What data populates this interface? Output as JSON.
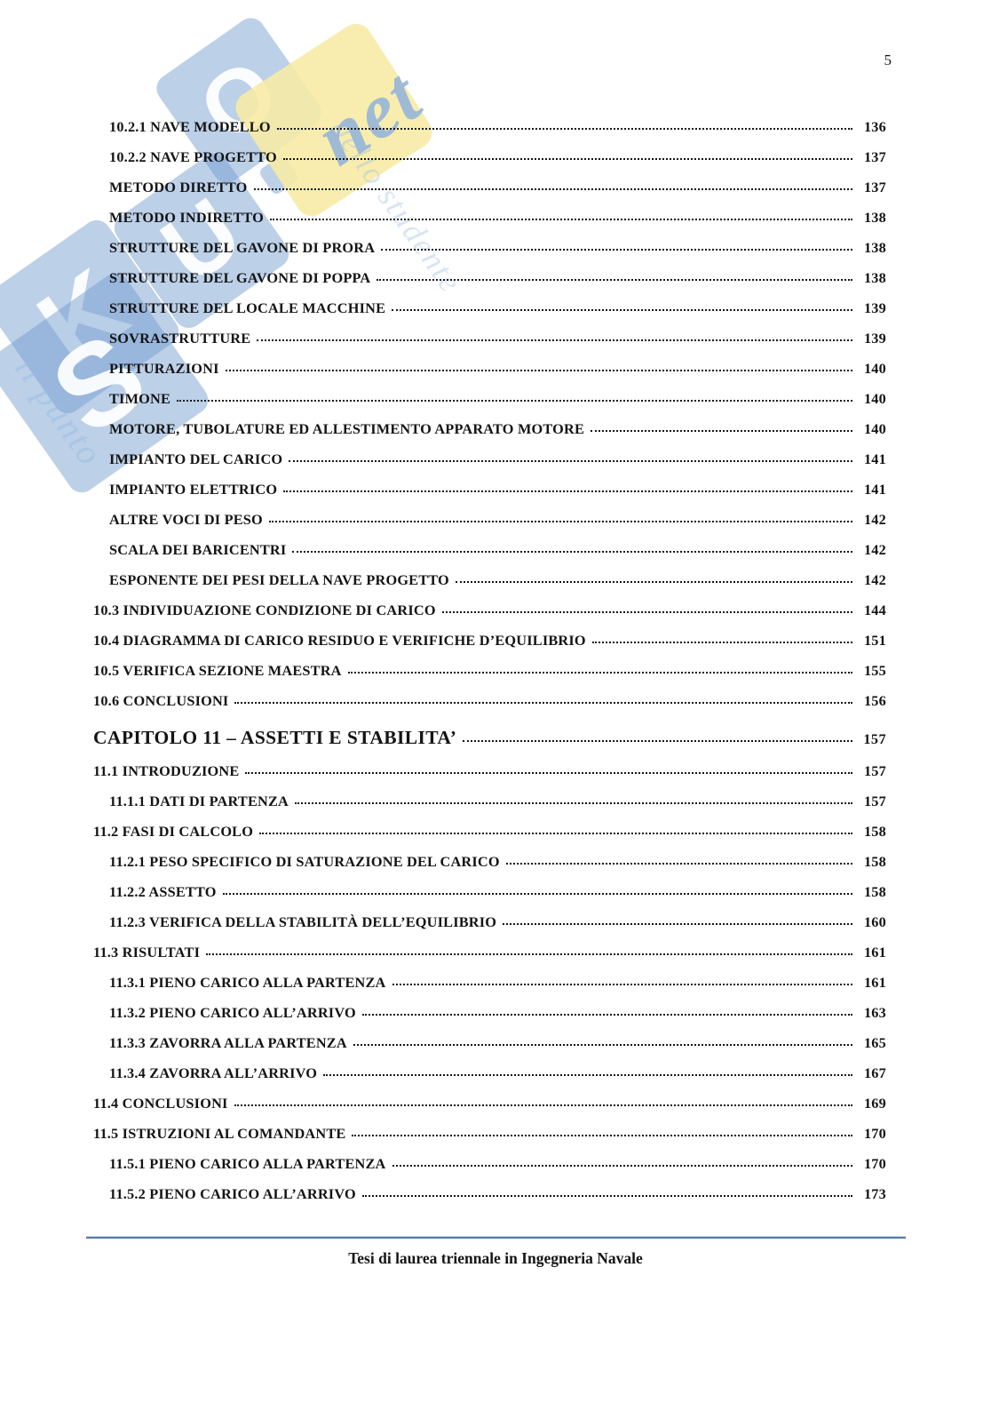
{
  "page": {
    "number": "5"
  },
  "toc": {
    "entries": [
      {
        "label": "10.2.1 NAVE MODELLO",
        "page": "136",
        "level": "subsection"
      },
      {
        "label": "10.2.2 NAVE PROGETTO",
        "page": "137",
        "level": "subsection"
      },
      {
        "label": "METODO DIRETTO",
        "page": "137",
        "level": "subsection"
      },
      {
        "label": "METODO INDIRETTO",
        "page": "138",
        "level": "subsection"
      },
      {
        "label": "STRUTTURE DEL GAVONE DI PRORA",
        "page": "138",
        "level": "subsection"
      },
      {
        "label": "STRUTTURE DEL GAVONE DI POPPA",
        "page": "138",
        "level": "subsection"
      },
      {
        "label": "STRUTTURE DEL LOCALE MACCHINE",
        "page": "139",
        "level": "subsection"
      },
      {
        "label": "SOVRASTRUTTURE",
        "page": "139",
        "level": "subsection"
      },
      {
        "label": "PITTURAZIONI",
        "page": "140",
        "level": "subsection"
      },
      {
        "label": "TIMONE",
        "page": "140",
        "level": "subsection"
      },
      {
        "label": "MOTORE, TUBOLATURE ED ALLESTIMENTO APPARATO MOTORE",
        "page": "140",
        "level": "subsection"
      },
      {
        "label": "IMPIANTO DEL CARICO",
        "page": "141",
        "level": "subsection"
      },
      {
        "label": "IMPIANTO ELETTRICO",
        "page": "141",
        "level": "subsection"
      },
      {
        "label": "ALTRE VOCI DI PESO",
        "page": "142",
        "level": "subsection"
      },
      {
        "label": "SCALA DEI BARICENTRI",
        "page": "142",
        "level": "subsection"
      },
      {
        "label": "ESPONENTE DEI PESI DELLA NAVE PROGETTO",
        "page": "142",
        "level": "subsection"
      },
      {
        "label": "10.3 INDIVIDUAZIONE CONDIZIONE DI CARICO",
        "page": "144",
        "level": "section"
      },
      {
        "label": "10.4 DIAGRAMMA DI CARICO RESIDUO E VERIFICHE D’EQUILIBRIO",
        "page": "151",
        "level": "section"
      },
      {
        "label": "10.5 VERIFICA SEZIONE MAESTRA",
        "page": "155",
        "level": "section"
      },
      {
        "label": "10.6 CONCLUSIONI",
        "page": "156",
        "level": "section"
      },
      {
        "label": "CAPITOLO 11 – ASSETTI E STABILITA’",
        "page": "157",
        "level": "chapter"
      },
      {
        "label": "11.1 INTRODUZIONE",
        "page": "157",
        "level": "section"
      },
      {
        "label": "11.1.1 DATI DI PARTENZA",
        "page": "157",
        "level": "subsection"
      },
      {
        "label": "11.2 FASI DI CALCOLO",
        "page": "158",
        "level": "section"
      },
      {
        "label": "11.2.1 PESO SPECIFICO DI SATURAZIONE DEL CARICO",
        "page": "158",
        "level": "subsection"
      },
      {
        "label": "11.2.2 ASSETTO",
        "page": "158",
        "level": "subsection"
      },
      {
        "label": "11.2.3 VERIFICA DELLA STABILITÀ DELL’EQUILIBRIO",
        "page": "160",
        "level": "subsection"
      },
      {
        "label": "11.3 RISULTATI",
        "page": "161",
        "level": "section"
      },
      {
        "label": "11.3.1 PIENO CARICO ALLA PARTENZA",
        "page": "161",
        "level": "subsection"
      },
      {
        "label": "11.3.2 PIENO CARICO ALL’ARRIVO",
        "page": "163",
        "level": "subsection"
      },
      {
        "label": "11.3.3 ZAVORRA ALLA PARTENZA",
        "page": "165",
        "level": "subsection"
      },
      {
        "label": "11.3.4 ZAVORRA ALL’ARRIVO",
        "page": "167",
        "level": "subsection"
      },
      {
        "label": "11.4 CONCLUSIONI",
        "page": "169",
        "level": "section"
      },
      {
        "label": "11.5 ISTRUZIONI AL COMANDANTE",
        "page": "170",
        "level": "section"
      },
      {
        "label": "11.5.1 PIENO CARICO ALLA PARTENZA",
        "page": "170",
        "level": "subsection"
      },
      {
        "label": "11.5.2 PIENO CARICO ALL’ARRIVO",
        "page": "173",
        "level": "subsection"
      }
    ]
  },
  "footer": {
    "text": "Tesi di laurea triennale in Ingegneria Navale"
  },
  "watermark": {
    "letters": [
      "S",
      "K",
      "U",
      "O"
    ],
    "net": "net",
    "tagline_fragments": [
      "il punto",
      "dello studente"
    ]
  },
  "colors": {
    "ink": "#141414",
    "footer_rule": "#5b7ca6",
    "watermark_blue": "rgba(116,156,206,0.48)",
    "watermark_yellow": "rgba(247,234,163,0.88)",
    "watermark_script": "rgba(138,175,222,0.82)"
  }
}
